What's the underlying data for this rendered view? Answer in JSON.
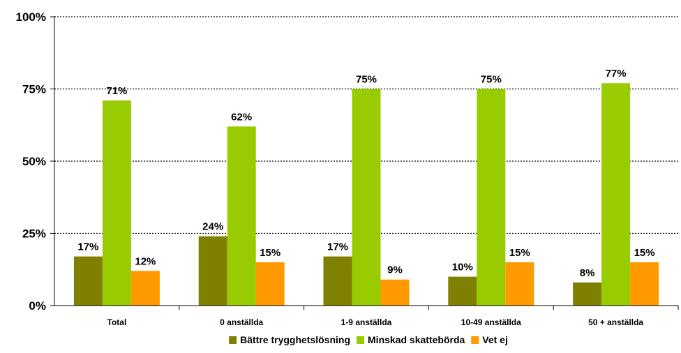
{
  "chart_data": {
    "type": "bar",
    "categories": [
      "Total",
      "0 anställda",
      "1-9 anställda",
      "10-49 anställda",
      "50 + anställda"
    ],
    "series": [
      {
        "name": "Bättre trygghetslösning",
        "color": "#808000",
        "values": [
          17,
          24,
          17,
          10,
          8
        ],
        "labels": [
          "17%",
          "24%",
          "17%",
          "10%",
          "8%"
        ]
      },
      {
        "name": "Minskad skattebörda",
        "color": "#99CC00",
        "values": [
          71,
          62,
          75,
          75,
          77
        ],
        "labels": [
          "71%",
          "62%",
          "75%",
          "75%",
          "77%"
        ]
      },
      {
        "name": "Vet ej",
        "color": "#FF9900",
        "values": [
          12,
          15,
          9,
          15,
          15
        ],
        "labels": [
          "12%",
          "15%",
          "9%",
          "15%",
          "15%"
        ]
      }
    ],
    "yticks": [
      "0%",
      "25%",
      "50%",
      "75%",
      "100%"
    ],
    "ylim": [
      0,
      100
    ],
    "grid": true,
    "legend_position": "bottom"
  }
}
